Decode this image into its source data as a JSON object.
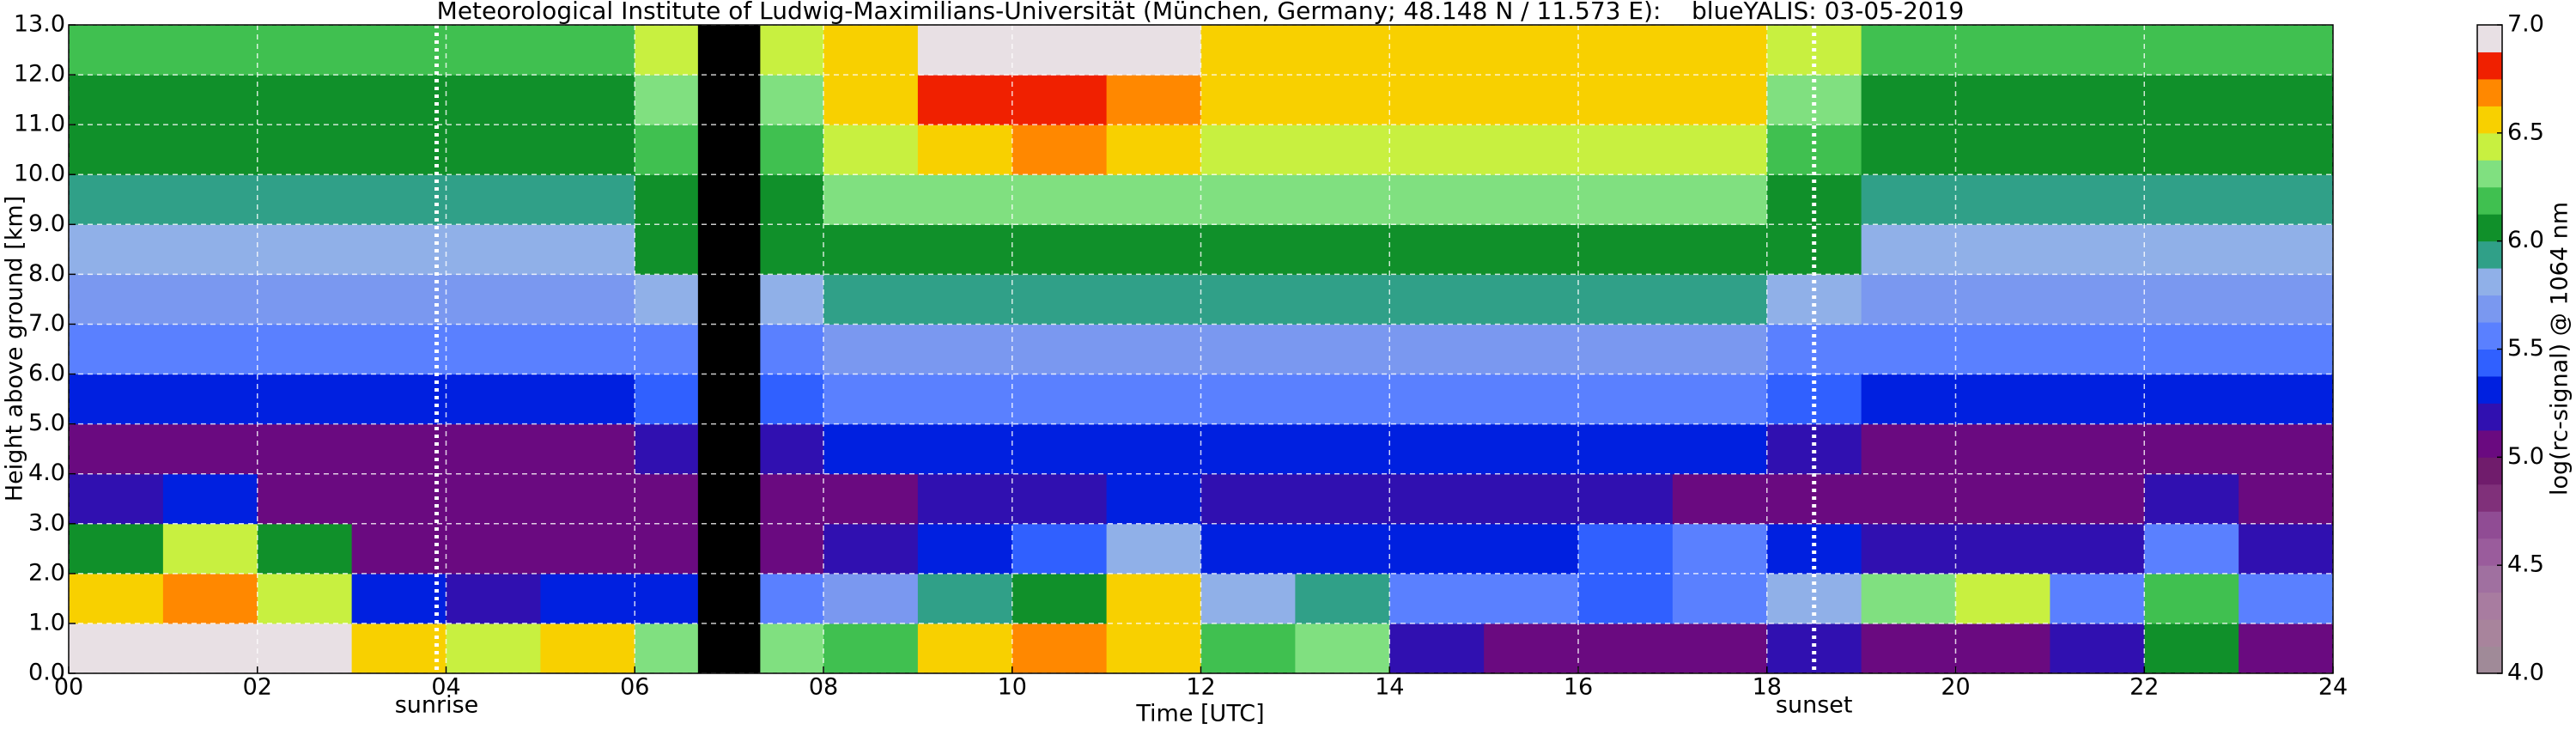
{
  "chart_data": {
    "type": "heatmap",
    "title": "Meteorological Institute of Ludwig-Maximilians-Universität (München, Germany; 48.148 N / 11.573 E):    blueYALIS: 03-05-2019",
    "x_label": "Time [UTC]",
    "y_label": "Height above ground [km]",
    "colorbar_label": "log(rc-signal) @ 1064 nm",
    "xlim": [
      0,
      24
    ],
    "ylim": [
      0,
      13
    ],
    "zlim": [
      4,
      7
    ],
    "xticks": [
      {
        "value": 0,
        "label": "00"
      },
      {
        "value": 2,
        "label": "02"
      },
      {
        "value": 4,
        "label": "04"
      },
      {
        "value": 6,
        "label": "06"
      },
      {
        "value": 8,
        "label": "08"
      },
      {
        "value": 10,
        "label": "10"
      },
      {
        "value": 12,
        "label": "12"
      },
      {
        "value": 14,
        "label": "14"
      },
      {
        "value": 16,
        "label": "16"
      },
      {
        "value": 18,
        "label": "18"
      },
      {
        "value": 20,
        "label": "20"
      },
      {
        "value": 22,
        "label": "22"
      },
      {
        "value": 24,
        "label": "24"
      }
    ],
    "yticks": [
      {
        "value": 0,
        "label": "0.0"
      },
      {
        "value": 1,
        "label": "1.0"
      },
      {
        "value": 2,
        "label": "2.0"
      },
      {
        "value": 3,
        "label": "3.0"
      },
      {
        "value": 4,
        "label": "4.0"
      },
      {
        "value": 5,
        "label": "5.0"
      },
      {
        "value": 6,
        "label": "6.0"
      },
      {
        "value": 7,
        "label": "7.0"
      },
      {
        "value": 8,
        "label": "8.0"
      },
      {
        "value": 9,
        "label": "9.0"
      },
      {
        "value": 10,
        "label": "10.0"
      },
      {
        "value": 11,
        "label": "11.0"
      },
      {
        "value": 12,
        "label": "12.0"
      },
      {
        "value": 13,
        "label": "13.0"
      }
    ],
    "zticks": [
      {
        "value": 4,
        "label": "4.0"
      },
      {
        "value": 4.5,
        "label": "4.5"
      },
      {
        "value": 5,
        "label": "5.0"
      },
      {
        "value": 5.5,
        "label": "5.5"
      },
      {
        "value": 6,
        "label": "6.0"
      },
      {
        "value": 6.5,
        "label": "6.5"
      },
      {
        "value": 7,
        "label": "7.0"
      }
    ],
    "grid": true,
    "colorscale": [
      "#a08a98",
      "#a8849c",
      "#a87ca0",
      "#a070a0",
      "#9a5c9c",
      "#904c94",
      "#80307a",
      "#701c6c",
      "#6a0a80",
      "#3010b0",
      "#0020e0",
      "#3060ff",
      "#5a80ff",
      "#7a98f0",
      "#90b0e8",
      "#30a088",
      "#10902a",
      "#40c050",
      "#80e080",
      "#c8f040",
      "#f8d000",
      "#ff8800",
      "#f02000",
      "#e8e0e4"
    ],
    "x_bins": [
      0,
      1,
      2,
      3,
      4,
      5,
      6,
      7,
      8,
      9,
      10,
      11,
      12,
      13,
      14,
      15,
      16,
      17,
      18,
      19,
      20,
      21,
      22,
      23,
      24
    ],
    "y_bins": [
      0,
      1,
      2,
      3,
      4,
      5,
      6,
      7,
      8,
      9,
      10,
      11,
      12,
      13
    ],
    "z": [
      [
        6.9,
        6.9,
        6.9,
        6.6,
        6.4,
        6.5,
        6.3,
        6.3,
        6.2,
        6.6,
        6.7,
        6.6,
        6.2,
        6.3,
        5.2,
        5.1,
        5.0,
        5.1,
        5.2,
        5.1,
        5.0,
        5.2,
        6.0,
        5.1
      ],
      [
        6.5,
        6.7,
        6.4,
        5.3,
        5.2,
        5.3,
        5.3,
        5.6,
        5.7,
        5.9,
        6.1,
        6.5,
        5.8,
        5.9,
        5.6,
        5.5,
        5.4,
        5.6,
        5.8,
        6.3,
        6.4,
        5.5,
        6.2,
        5.5
      ],
      [
        6.1,
        6.4,
        6.0,
        5.1,
        5.0,
        5.1,
        5.0,
        5.1,
        5.2,
        5.3,
        5.4,
        5.8,
        5.3,
        5.3,
        5.3,
        5.3,
        5.4,
        5.5,
        5.3,
        5.2,
        5.2,
        5.2,
        5.6,
        5.2
      ],
      [
        5.2,
        5.3,
        5.1,
        5.0,
        5.0,
        5.1,
        5.0,
        5.0,
        5.1,
        5.2,
        5.2,
        5.3,
        5.2,
        5.2,
        5.2,
        5.2,
        5.2,
        5.1,
        5.1,
        5.1,
        5.0,
        5.0,
        5.2,
        5.0
      ],
      [
        5.1,
        5.1,
        5.1,
        5.1,
        5.1,
        5.1,
        5.2,
        5.2,
        5.3,
        5.3,
        5.3,
        5.3,
        5.3,
        5.3,
        5.3,
        5.3,
        5.3,
        5.3,
        5.2,
        5.1,
        5.1,
        5.1,
        5.1,
        5.1
      ],
      [
        5.3,
        5.3,
        5.3,
        5.3,
        5.3,
        5.3,
        5.4,
        5.4,
        5.5,
        5.5,
        5.5,
        5.5,
        5.5,
        5.5,
        5.5,
        5.5,
        5.5,
        5.5,
        5.4,
        5.3,
        5.3,
        5.3,
        5.3,
        5.3
      ],
      [
        5.5,
        5.5,
        5.5,
        5.5,
        5.5,
        5.5,
        5.6,
        5.6,
        5.7,
        5.7,
        5.7,
        5.7,
        5.7,
        5.7,
        5.7,
        5.7,
        5.7,
        5.7,
        5.6,
        5.5,
        5.5,
        5.5,
        5.5,
        5.5
      ],
      [
        5.7,
        5.7,
        5.7,
        5.7,
        5.7,
        5.7,
        5.8,
        5.8,
        5.9,
        5.9,
        5.9,
        5.9,
        5.9,
        5.9,
        5.9,
        5.9,
        5.9,
        5.9,
        5.8,
        5.7,
        5.7,
        5.7,
        5.7,
        5.7
      ],
      [
        5.8,
        5.8,
        5.8,
        5.8,
        5.8,
        5.8,
        6.0,
        6.0,
        6.1,
        6.1,
        6.1,
        6.1,
        6.1,
        6.1,
        6.1,
        6.1,
        6.1,
        6.1,
        6.0,
        5.8,
        5.8,
        5.8,
        5.8,
        5.8
      ],
      [
        5.9,
        5.9,
        5.9,
        5.9,
        5.9,
        5.9,
        6.1,
        6.1,
        6.3,
        6.3,
        6.3,
        6.3,
        6.3,
        6.3,
        6.3,
        6.3,
        6.3,
        6.3,
        6.1,
        5.9,
        5.9,
        5.9,
        5.9,
        5.9
      ],
      [
        6.0,
        6.0,
        6.0,
        6.0,
        6.0,
        6.0,
        6.2,
        6.2,
        6.4,
        6.6,
        6.7,
        6.6,
        6.4,
        6.4,
        6.4,
        6.4,
        6.4,
        6.4,
        6.2,
        6.0,
        6.0,
        6.0,
        6.0,
        6.0
      ],
      [
        6.1,
        6.1,
        6.1,
        6.1,
        6.1,
        6.1,
        6.3,
        6.3,
        6.5,
        6.8,
        6.8,
        6.7,
        6.5,
        6.5,
        6.5,
        6.5,
        6.5,
        6.5,
        6.3,
        6.1,
        6.1,
        6.1,
        6.1,
        6.1
      ],
      [
        6.2,
        6.2,
        6.2,
        6.2,
        6.2,
        6.2,
        6.4,
        6.4,
        6.6,
        6.9,
        6.9,
        6.9,
        6.6,
        6.6,
        6.6,
        6.6,
        6.6,
        6.6,
        6.4,
        6.2,
        6.2,
        6.2,
        6.2,
        6.2
      ]
    ],
    "gap": [
      6.67,
      7.33
    ],
    "gap_color": "#000000",
    "annotations": [
      {
        "label": "sunrise",
        "x": 3.9
      },
      {
        "label": "sunset",
        "x": 18.5
      }
    ]
  }
}
